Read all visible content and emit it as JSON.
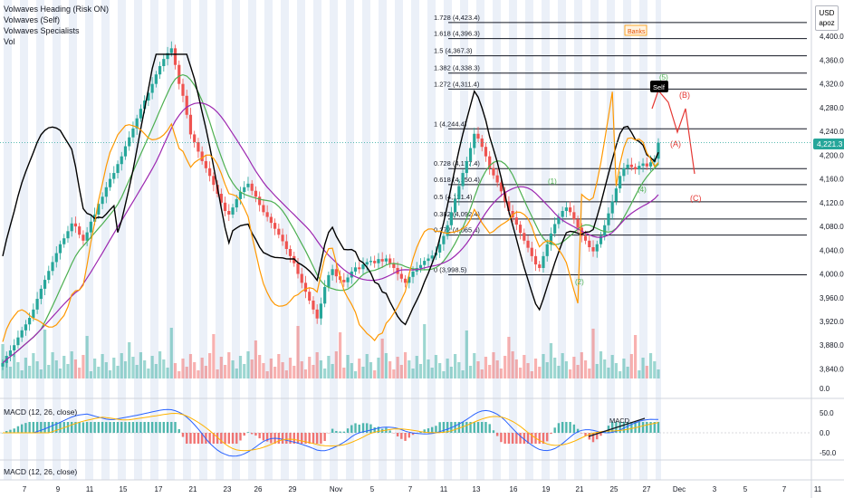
{
  "legend": [
    "Volwaves Heading (Risk ON)",
    "Volwaves (Self)",
    "Volwaves Specialists",
    "Vol"
  ],
  "currency": {
    "code": "USD",
    "sub": "apoz"
  },
  "current_price": "4,221.3",
  "price_axis": [
    "4,400.0",
    "4,360.0",
    "4,320.0",
    "4,280.0",
    "4,240.0",
    "4,200.0",
    "4,160.0",
    "4,120.0",
    "4,080.0",
    "4,040.0",
    "4,000.0",
    "3,960.0",
    "3,920.0",
    "3,880.0",
    "3,840.0"
  ],
  "macd_axis": [
    "0.0",
    "50.0",
    "0.0",
    "-50.0"
  ],
  "x_axis": [
    "7",
    "9",
    "11",
    "13",
    "15",
    "17",
    "19",
    "21",
    "23",
    "26",
    "29",
    "Nov",
    "5",
    "7",
    "9",
    "11",
    "13",
    "16",
    "19",
    "21",
    "23",
    "25",
    "27",
    "Dec",
    "3",
    "5",
    "7",
    "11"
  ],
  "fib_levels": [
    {
      "label": "1.728 (4,423.4)",
      "value": 4423.4
    },
    {
      "label": "1.618 (4,396.3)",
      "value": 4396.3
    },
    {
      "label": "1.5 (4,367.3)",
      "value": 4367.3
    },
    {
      "label": "1.382 (4,338.3)",
      "value": 4338.3
    },
    {
      "label": "1.272 (4,311.4)",
      "value": 4311.4
    },
    {
      "label": "1 (4,244.4)",
      "value": 4244.4
    },
    {
      "label": "0.728 (4,177.4)",
      "value": 4177.4
    },
    {
      "label": "0.618 (4,150.4)",
      "value": 4150.4
    },
    {
      "label": "0.5 (4,121.4)",
      "value": 4121.4
    },
    {
      "label": "0.382 (4,092.4)",
      "value": 4092.4
    },
    {
      "label": "0.272 (4,065.4)",
      "value": 4065.4
    },
    {
      "label": "0 (3,998.5)",
      "value": 3998.5
    }
  ],
  "annotations": {
    "banks": "Banks",
    "self": "Self",
    "wave_a": "(A)",
    "wave_b": "(B)",
    "wave_c": "(C)",
    "wave_1": "(1)",
    "wave_2": "(2)",
    "wave_3": "(3)",
    "wave_4": "(4)",
    "wave_5": "(5)",
    "macd_note": "MACD"
  },
  "macd_label": "MACD (12, 26, close)",
  "macd2_label": "MACD (12, 26, close)",
  "colors": {
    "up": "#26a69a",
    "down": "#ef5350",
    "risk_on": "#000000",
    "specialists": "#ff9800",
    "ma1": "#4caf50",
    "ma2": "#9c27b0",
    "wave_green": "#4caf50",
    "wave_red": "#e53935",
    "shade": "#dbe3f3"
  },
  "chart_data": {
    "type": "candlestick",
    "ylim": [
      3830,
      4440
    ],
    "price_series_close": [
      3850,
      3862,
      3871,
      3880,
      3893,
      3905,
      3915,
      3926,
      3940,
      3958,
      3975,
      3990,
      4005,
      4020,
      4035,
      4050,
      4060,
      4072,
      4085,
      4080,
      4066,
      4056,
      4070,
      4088,
      4100,
      4118,
      4130,
      4146,
      4160,
      4170,
      4185,
      4198,
      4215,
      4230,
      4245,
      4262,
      4278,
      4292,
      4305,
      4320,
      4336,
      4350,
      4362,
      4372,
      4380,
      4352,
      4320,
      4300,
      4268,
      4235,
      4222,
      4206,
      4190,
      4178,
      4165,
      4150,
      4135,
      4120,
      4106,
      4100,
      4112,
      4126,
      4138,
      4146,
      4152,
      4140,
      4130,
      4116,
      4104,
      4096,
      4086,
      4076,
      4066,
      4055,
      4042,
      4030,
      4018,
      4000,
      3985,
      3970,
      3955,
      3940,
      3925,
      3950,
      3978,
      3998,
      4008,
      3996,
      3990,
      3986,
      3994,
      4004,
      4011,
      4008,
      4016,
      4020,
      4022,
      4018,
      4025,
      4021,
      4026,
      4018,
      4010,
      4000,
      3992,
      3985,
      3995,
      4004,
      4010,
      4015,
      4022,
      4026,
      4031,
      4036,
      4050,
      4064,
      4082,
      4104,
      4126,
      4148,
      4170,
      4190,
      4212,
      4236,
      4228,
      4214,
      4198,
      4178,
      4166,
      4154,
      4139,
      4122,
      4106,
      4095,
      4083,
      4069,
      4056,
      4044,
      4030,
      4016,
      4010,
      4030,
      4050,
      4068,
      4084,
      4096,
      4106,
      4112,
      4104,
      4092,
      4078,
      4064,
      4056,
      4045,
      4038,
      4050,
      4064,
      4082,
      4102,
      4122,
      4144,
      4165,
      4178,
      4184,
      4180,
      4176,
      4182,
      4186,
      4181,
      4188,
      4194,
      4221
    ]
  }
}
